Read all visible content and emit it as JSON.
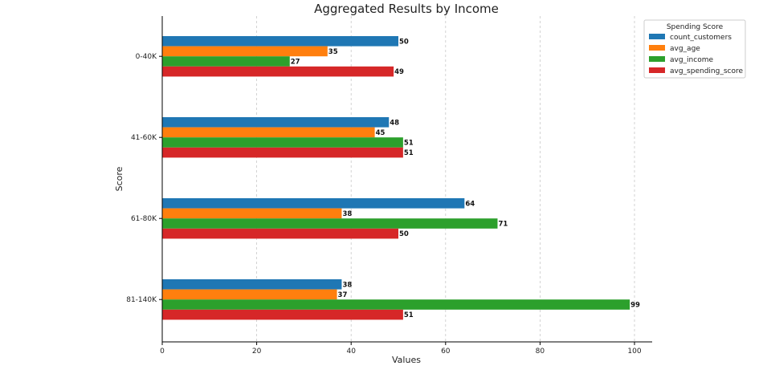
{
  "chart_data": {
    "type": "bar",
    "orientation": "horizontal",
    "title": "Aggregated Results by Income",
    "xlabel": "Values",
    "ylabel": "Score",
    "xlim": [
      0,
      104
    ],
    "xticks": [
      0,
      20,
      40,
      60,
      80,
      100
    ],
    "grid": "x-dashed",
    "categories": [
      "0-40K",
      "41-60K",
      "61-80K",
      "81-140K"
    ],
    "legend": {
      "title": "Spending Score",
      "position": "top-right"
    },
    "series": [
      {
        "name": "count_customers",
        "color": "#1f77b4",
        "values": [
          50,
          48,
          64,
          38
        ]
      },
      {
        "name": "avg_age",
        "color": "#ff7f0e",
        "values": [
          35,
          45,
          38,
          37
        ]
      },
      {
        "name": "avg_income",
        "color": "#2ca02c",
        "values": [
          27,
          51,
          71,
          99
        ]
      },
      {
        "name": "avg_spending_score",
        "color": "#d62728",
        "values": [
          49,
          51,
          50,
          51
        ]
      }
    ]
  }
}
